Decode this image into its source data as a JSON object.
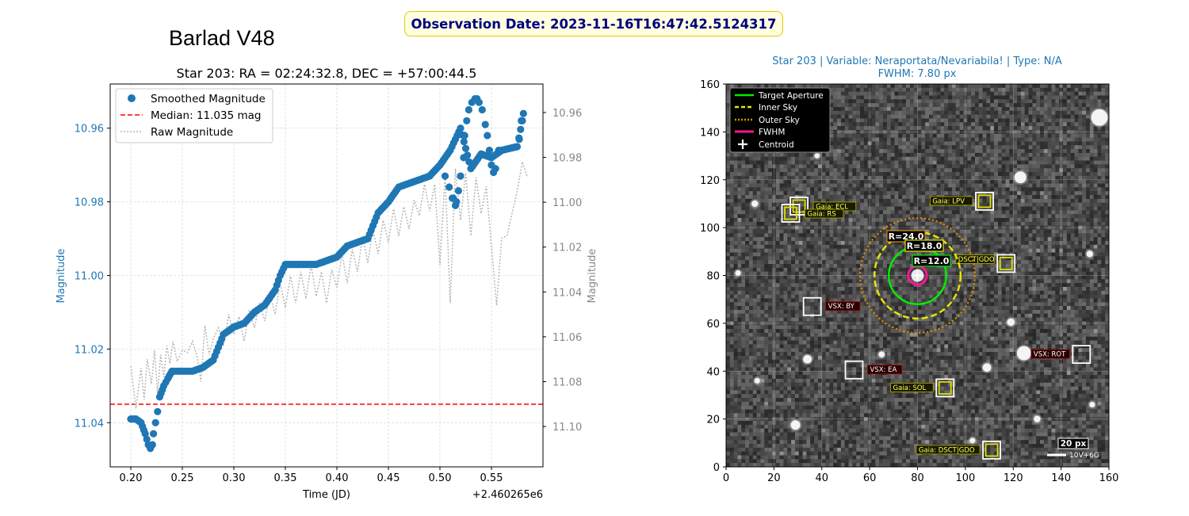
{
  "header": {
    "observation_label": "Observation Date: 2023-11-16T16:47:42.5124317",
    "instrument_title": "Barlad V48"
  },
  "colors": {
    "smoothed": "#1f77b4",
    "median": "#ff0000",
    "raw": "#b5b5b5",
    "title_blue": "#1f77b4",
    "target_aperture": "#00ee00",
    "inner_sky": "#e6e600",
    "outer_sky": "#e08a00",
    "fwhm": "#ff1493",
    "gaia_box": "#e0e000",
    "vsx_box": "#dddddd"
  },
  "chart_data": [
    {
      "type": "scatter",
      "title": "Star 203: RA = 02:24:32.8, DEC = +57:00:44.5",
      "xlabel": "Time (JD)",
      "x_offset_label": "+2.460265e6",
      "ylabel_left": "Magnitude",
      "ylabel_right": "Magnitude",
      "xlim": [
        0.18,
        0.6
      ],
      "ylim_left": [
        11.052,
        10.948
      ],
      "ylim_right": [
        11.118,
        10.9473
      ],
      "x_ticks": [
        0.2,
        0.25,
        0.3,
        0.35,
        0.4,
        0.45,
        0.5,
        0.55
      ],
      "x_tick_labels": [
        "0.20",
        "0.25",
        "0.30",
        "0.35",
        "0.40",
        "0.45",
        "0.50",
        "0.55"
      ],
      "y_left_ticks": [
        10.96,
        10.98,
        11.0,
        11.02,
        11.04
      ],
      "y_left_tick_labels": [
        "10.96",
        "10.98",
        "11.00",
        "11.02",
        "11.04"
      ],
      "y_right_ticks": [
        10.96,
        10.98,
        11.0,
        11.02,
        11.04,
        11.06,
        11.08,
        11.1
      ],
      "y_right_tick_labels": [
        "10.96",
        "10.98",
        "11.00",
        "11.02",
        "11.04",
        "11.06",
        "11.08",
        "11.10"
      ],
      "grid": true,
      "legend_position": "top-left",
      "legend": [
        "Smoothed Magnitude",
        "Median: 11.035 mag",
        "Raw Magnitude"
      ],
      "median_value": 11.035,
      "smoothed_anchors": [
        [
          0.2,
          11.039
        ],
        [
          0.205,
          11.039
        ],
        [
          0.21,
          11.04
        ],
        [
          0.214,
          11.043
        ],
        [
          0.217,
          11.046
        ],
        [
          0.219,
          11.047
        ],
        [
          0.221,
          11.046
        ],
        [
          0.222,
          11.043
        ],
        [
          0.224,
          11.04
        ],
        [
          0.226,
          11.037
        ],
        [
          0.228,
          11.033
        ],
        [
          0.232,
          11.03
        ],
        [
          0.236,
          11.028
        ],
        [
          0.24,
          11.026
        ],
        [
          0.25,
          11.026
        ],
        [
          0.26,
          11.026
        ],
        [
          0.27,
          11.025
        ],
        [
          0.28,
          11.023
        ],
        [
          0.29,
          11.016
        ],
        [
          0.3,
          11.014
        ],
        [
          0.31,
          11.013
        ],
        [
          0.32,
          11.01
        ],
        [
          0.33,
          11.008
        ],
        [
          0.34,
          11.004
        ],
        [
          0.345,
          11.0
        ],
        [
          0.35,
          10.997
        ],
        [
          0.36,
          10.997
        ],
        [
          0.37,
          10.997
        ],
        [
          0.38,
          10.997
        ],
        [
          0.39,
          10.996
        ],
        [
          0.4,
          10.995
        ],
        [
          0.41,
          10.992
        ],
        [
          0.42,
          10.991
        ],
        [
          0.43,
          10.99
        ],
        [
          0.44,
          10.983
        ],
        [
          0.45,
          10.98
        ],
        [
          0.46,
          10.976
        ],
        [
          0.47,
          10.975
        ],
        [
          0.48,
          10.974
        ],
        [
          0.49,
          10.973
        ],
        [
          0.5,
          10.97
        ],
        [
          0.51,
          10.966
        ],
        [
          0.52,
          10.96
        ],
        [
          0.53,
          10.971
        ],
        [
          0.54,
          10.967
        ],
        [
          0.55,
          10.968
        ],
        [
          0.56,
          10.966
        ],
        [
          0.575,
          10.965
        ],
        [
          0.58,
          10.958
        ]
      ],
      "smoothed_extra_points": [
        [
          0.505,
          10.973
        ],
        [
          0.509,
          10.976
        ],
        [
          0.512,
          10.979
        ],
        [
          0.515,
          10.981
        ],
        [
          0.518,
          10.977
        ],
        [
          0.513,
          10.979
        ],
        [
          0.516,
          10.98
        ],
        [
          0.52,
          10.973
        ],
        [
          0.523,
          10.968
        ],
        [
          0.524,
          10.962
        ],
        [
          0.526,
          10.958
        ],
        [
          0.528,
          10.955
        ],
        [
          0.531,
          10.953
        ],
        [
          0.534,
          10.952
        ],
        [
          0.536,
          10.952
        ],
        [
          0.538,
          10.953
        ],
        [
          0.541,
          10.955
        ],
        [
          0.544,
          10.959
        ],
        [
          0.546,
          10.962
        ],
        [
          0.548,
          10.966
        ],
        [
          0.55,
          10.97
        ],
        [
          0.552,
          10.972
        ],
        [
          0.554,
          10.971
        ],
        [
          0.557,
          10.966
        ],
        [
          0.577,
          10.963
        ],
        [
          0.579,
          10.958
        ],
        [
          0.581,
          10.956
        ]
      ],
      "raw_series": [
        [
          0.2,
          11.073
        ],
        [
          0.205,
          11.092
        ],
        [
          0.21,
          11.074
        ],
        [
          0.213,
          11.088
        ],
        [
          0.216,
          11.07
        ],
        [
          0.22,
          11.081
        ],
        [
          0.223,
          11.066
        ],
        [
          0.226,
          11.085
        ],
        [
          0.229,
          11.068
        ],
        [
          0.232,
          11.078
        ],
        [
          0.235,
          11.064
        ],
        [
          0.238,
          11.072
        ],
        [
          0.241,
          11.062
        ],
        [
          0.245,
          11.071
        ],
        [
          0.25,
          11.066
        ],
        [
          0.255,
          11.067
        ],
        [
          0.26,
          11.062
        ],
        [
          0.265,
          11.07
        ],
        [
          0.268,
          11.08
        ],
        [
          0.272,
          11.055
        ],
        [
          0.276,
          11.068
        ],
        [
          0.28,
          11.061
        ],
        [
          0.285,
          11.056
        ],
        [
          0.29,
          11.064
        ],
        [
          0.295,
          11.05
        ],
        [
          0.3,
          11.059
        ],
        [
          0.305,
          11.051
        ],
        [
          0.31,
          11.062
        ],
        [
          0.315,
          11.048
        ],
        [
          0.32,
          11.056
        ],
        [
          0.325,
          11.045
        ],
        [
          0.33,
          11.053
        ],
        [
          0.335,
          11.041
        ],
        [
          0.34,
          11.05
        ],
        [
          0.345,
          11.036
        ],
        [
          0.35,
          11.047
        ],
        [
          0.355,
          11.033
        ],
        [
          0.36,
          11.045
        ],
        [
          0.365,
          11.031
        ],
        [
          0.37,
          11.043
        ],
        [
          0.375,
          11.028
        ],
        [
          0.38,
          11.042
        ],
        [
          0.385,
          11.031
        ],
        [
          0.39,
          11.045
        ],
        [
          0.395,
          11.03
        ],
        [
          0.4,
          11.038
        ],
        [
          0.405,
          11.023
        ],
        [
          0.41,
          11.036
        ],
        [
          0.415,
          11.021
        ],
        [
          0.42,
          11.031
        ],
        [
          0.425,
          11.015
        ],
        [
          0.43,
          11.027
        ],
        [
          0.435,
          11.012
        ],
        [
          0.44,
          11.023
        ],
        [
          0.445,
          11.008
        ],
        [
          0.45,
          11.018
        ],
        [
          0.455,
          11.003
        ],
        [
          0.46,
          11.015
        ],
        [
          0.465,
          11.002
        ],
        [
          0.47,
          11.012
        ],
        [
          0.475,
          10.999
        ],
        [
          0.48,
          11.006
        ],
        [
          0.485,
          10.992
        ],
        [
          0.49,
          11.004
        ],
        [
          0.495,
          10.992
        ],
        [
          0.5,
          11.028
        ],
        [
          0.505,
          10.988
        ],
        [
          0.51,
          11.045
        ],
        [
          0.515,
          10.985
        ],
        [
          0.52,
          11.008
        ],
        [
          0.525,
          10.987
        ],
        [
          0.53,
          11.015
        ],
        [
          0.535,
          10.989
        ],
        [
          0.54,
          11.005
        ],
        [
          0.545,
          10.993
        ],
        [
          0.55,
          11.02
        ],
        [
          0.555,
          11.046
        ],
        [
          0.56,
          11.016
        ],
        [
          0.565,
          11.015
        ],
        [
          0.57,
          11.005
        ],
        [
          0.575,
          10.995
        ],
        [
          0.58,
          10.982
        ],
        [
          0.585,
          10.989
        ]
      ]
    },
    {
      "type": "heatmap",
      "title_line1": "Star 203 | Variable: Neraportata/Nevariabila! | Type: N/A",
      "title_line2": "FWHM: 7.80 px",
      "xlim": [
        0,
        160
      ],
      "ylim": [
        0,
        160
      ],
      "x_ticks": [
        0,
        20,
        40,
        60,
        80,
        100,
        120,
        140,
        160
      ],
      "x_tick_labels": [
        "0",
        "20",
        "40",
        "60",
        "80",
        "100",
        "120",
        "140",
        "160"
      ],
      "y_ticks": [
        0,
        20,
        40,
        60,
        80,
        100,
        120,
        140,
        160
      ],
      "y_tick_labels": [
        "0",
        "20",
        "40",
        "60",
        "80",
        "100",
        "120",
        "140",
        "160"
      ],
      "grid": true,
      "legend_position": "top-left",
      "legend": [
        "Target Aperture",
        "Inner Sky",
        "Outer Sky",
        "FWHM",
        "Centroid"
      ],
      "target": {
        "x": 80,
        "y": 80
      },
      "apertures": [
        {
          "name": "target",
          "radius": 12,
          "label": "R=12.0"
        },
        {
          "name": "inner",
          "radius": 18,
          "label": "R=18.0"
        },
        {
          "name": "outer",
          "radius": 24,
          "label": "R=24.0"
        }
      ],
      "fwhm_radius": 3.9,
      "catalog_markers": [
        {
          "kind": "gaia",
          "label": "Gaia: ECL",
          "x": 30.5,
          "y": 109
        },
        {
          "kind": "gaia",
          "label": "Gaia: RS",
          "x": 27,
          "y": 106
        },
        {
          "kind": "gaia",
          "label": "Gaia: LPV",
          "x": 108,
          "y": 111
        },
        {
          "kind": "gaia",
          "label": "DSCT|GDO",
          "x": 117,
          "y": 85
        },
        {
          "kind": "gaia",
          "label": "Gaia: SOL",
          "x": 91.5,
          "y": 33
        },
        {
          "kind": "gaia",
          "label": "Gaia: DSCT|GDO",
          "x": 111,
          "y": 7
        },
        {
          "kind": "vsx",
          "label": "VSX: BY",
          "x": 36,
          "y": 67
        },
        {
          "kind": "vsx",
          "label": "VSX: EA",
          "x": 53.5,
          "y": 40.5
        },
        {
          "kind": "vsx",
          "label": "VSX: ROT",
          "x": 148.5,
          "y": 47
        }
      ],
      "bright_stars": [
        {
          "x": 123,
          "y": 121,
          "r": 2.5
        },
        {
          "x": 156,
          "y": 146,
          "r": 3.5
        },
        {
          "x": 124.5,
          "y": 47.5,
          "r": 3
        },
        {
          "x": 29,
          "y": 17.5,
          "r": 2
        },
        {
          "x": 34,
          "y": 45,
          "r": 1.8
        },
        {
          "x": 109,
          "y": 41.5,
          "r": 1.8
        },
        {
          "x": 119,
          "y": 60.5,
          "r": 1.6
        },
        {
          "x": 12,
          "y": 110,
          "r": 1.4
        },
        {
          "x": 152,
          "y": 89,
          "r": 1.4
        },
        {
          "x": 130,
          "y": 20,
          "r": 1.4
        },
        {
          "x": 65,
          "y": 47,
          "r": 1.3
        },
        {
          "x": 5,
          "y": 81,
          "r": 1.2
        },
        {
          "x": 13,
          "y": 36,
          "r": 1.2
        },
        {
          "x": 103,
          "y": 11,
          "r": 1.2
        },
        {
          "x": 153,
          "y": 26,
          "r": 1.2
        },
        {
          "x": 38,
          "y": 130,
          "r": 1.1
        }
      ],
      "scalebar_label": "20 px",
      "orientation_label": "10V+6G"
    }
  ]
}
